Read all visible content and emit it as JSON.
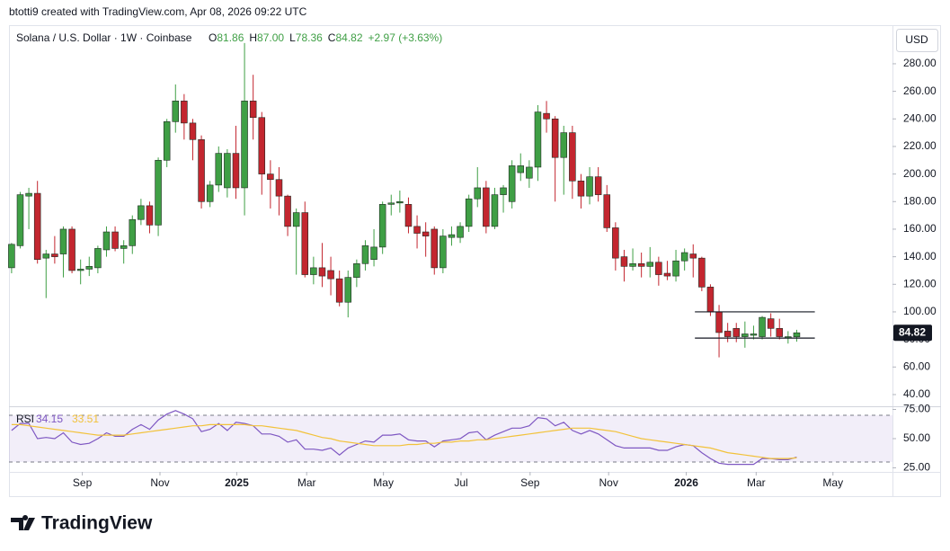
{
  "attribution": "btotti9 created with TradingView.com, Apr 08, 2026 09:22 UTC",
  "currency": "USD",
  "brand": "TradingView",
  "chart_data": [
    {
      "type": "candlestick",
      "title": "Solana / U.S. Dollar · 1W · Coinbase",
      "legend": [
        {
          "key": "O",
          "value": "81.86"
        },
        {
          "key": "H",
          "value": "87.00"
        },
        {
          "key": "L",
          "value": "78.36"
        },
        {
          "key": "C",
          "value": "84.82"
        }
      ],
      "change": "+2.97 (+3.63%)",
      "x": [
        0,
        1,
        2,
        3,
        4,
        5,
        6,
        7,
        8,
        9,
        10,
        11,
        12,
        13,
        14,
        15,
        16,
        17,
        18,
        19,
        20,
        21,
        22,
        23,
        24,
        25,
        26,
        27,
        28,
        29,
        30,
        31,
        32,
        33,
        34,
        35,
        36,
        37,
        38,
        39,
        40,
        41,
        42,
        43,
        44,
        45,
        46,
        47,
        48,
        49,
        50,
        51,
        52,
        53,
        54,
        55,
        56,
        57,
        58,
        59,
        60,
        61,
        62,
        63,
        64,
        65,
        66,
        67,
        68,
        69,
        70,
        71,
        72,
        73,
        74,
        75,
        76,
        77,
        78,
        79,
        80,
        81,
        82,
        83,
        84,
        85,
        86,
        87,
        88,
        89,
        90,
        91
      ],
      "open": [
        132,
        148,
        184,
        186,
        139,
        142,
        142,
        160,
        130,
        131,
        132,
        145,
        158,
        146,
        148,
        167,
        177,
        163,
        210,
        238,
        253,
        237,
        225,
        180,
        192,
        190,
        215,
        190,
        253,
        241,
        200,
        196,
        184,
        162,
        172,
        127,
        132,
        130,
        124,
        107,
        125,
        135,
        138,
        147,
        178,
        179,
        178,
        162,
        158,
        160,
        132,
        154,
        154,
        162,
        182,
        190,
        162,
        185,
        180,
        201,
        197,
        205,
        244,
        240,
        212,
        230,
        195,
        184,
        198,
        185,
        161,
        140,
        133,
        135,
        133,
        136,
        128,
        126,
        137,
        142,
        139,
        118,
        100,
        86,
        88,
        82,
        83,
        82,
        95,
        88,
        81,
        81.86
      ],
      "high": [
        150,
        187,
        190,
        195,
        145,
        155,
        162,
        162,
        138,
        140,
        148,
        162,
        162,
        152,
        170,
        182,
        180,
        212,
        240,
        265,
        258,
        240,
        228,
        195,
        220,
        218,
        235,
        295,
        272,
        245,
        210,
        205,
        185,
        175,
        180,
        140,
        150,
        140,
        130,
        130,
        138,
        152,
        160,
        180,
        185,
        188,
        183,
        170,
        165,
        162,
        160,
        162,
        165,
        185,
        205,
        195,
        190,
        192,
        210,
        215,
        210,
        250,
        253,
        242,
        235,
        235,
        200,
        205,
        205,
        192,
        165,
        145,
        146,
        143,
        147,
        140,
        137,
        145,
        146,
        149,
        140,
        120,
        105,
        92,
        92,
        93,
        90,
        97,
        99,
        95,
        86,
        87
      ],
      "low": [
        128,
        146,
        160,
        135,
        110,
        135,
        125,
        128,
        120,
        126,
        128,
        140,
        144,
        135,
        142,
        163,
        157,
        155,
        205,
        230,
        225,
        210,
        175,
        176,
        187,
        183,
        182,
        170,
        225,
        185,
        175,
        170,
        155,
        127,
        125,
        120,
        118,
        112,
        104,
        96,
        118,
        130,
        133,
        142,
        170,
        172,
        157,
        146,
        140,
        127,
        128,
        148,
        150,
        158,
        176,
        157,
        160,
        172,
        175,
        195,
        190,
        195,
        230,
        180,
        185,
        182,
        175,
        178,
        180,
        158,
        130,
        122,
        130,
        125,
        125,
        119,
        123,
        122,
        130,
        125,
        115,
        97,
        67,
        78,
        78,
        74,
        80,
        80,
        82,
        80,
        77,
        78.36
      ],
      "close": [
        149,
        185,
        186,
        138,
        142,
        140,
        160,
        130,
        131,
        133,
        146,
        158,
        146,
        148,
        167,
        177,
        163,
        210,
        238,
        253,
        237,
        225,
        180,
        192,
        215,
        215,
        190,
        253,
        241,
        200,
        196,
        184,
        162,
        172,
        127,
        132,
        126,
        124,
        107,
        125,
        135,
        148,
        147,
        178,
        179,
        180,
        162,
        157,
        155,
        132,
        155,
        156,
        162,
        182,
        190,
        162,
        185,
        190,
        206,
        206,
        205,
        245,
        240,
        212,
        230,
        195,
        184,
        198,
        185,
        161,
        139,
        133,
        135,
        133,
        136,
        127,
        126,
        137,
        143,
        139,
        118,
        100,
        85,
        82,
        82,
        84,
        84,
        96,
        88,
        82,
        82,
        84.82
      ],
      "up_color": "#3f9f45",
      "down_color": "#c3262f",
      "xlim": [
        -0.3,
        102.1
      ],
      "xticks": [
        {
          "value": 8.2,
          "label": "Sep"
        },
        {
          "value": 17.2,
          "label": "Nov"
        },
        {
          "value": 26.1,
          "label": "2025"
        },
        {
          "value": 34.2,
          "label": "Mar"
        },
        {
          "value": 43.1,
          "label": "May"
        },
        {
          "value": 52.1,
          "label": "Jul"
        },
        {
          "value": 60.1,
          "label": "Sep"
        },
        {
          "value": 69.2,
          "label": "Nov"
        },
        {
          "value": 78.2,
          "label": "2026"
        },
        {
          "value": 86.3,
          "label": "Mar"
        },
        {
          "value": 95.2,
          "label": "May"
        }
      ],
      "ylim": [
        31.5,
        308
      ],
      "yticks": [
        {
          "value": 40,
          "label": "40.00"
        },
        {
          "value": 60,
          "label": "60.00"
        },
        {
          "value": 80,
          "label": "80.00"
        },
        {
          "value": 100,
          "label": "100.00"
        },
        {
          "value": 120,
          "label": "120.00"
        },
        {
          "value": 140,
          "label": "140.00"
        },
        {
          "value": 160,
          "label": "160.00"
        },
        {
          "value": 180,
          "label": "180.00"
        },
        {
          "value": 200,
          "label": "200.00"
        },
        {
          "value": 220,
          "label": "220.00"
        },
        {
          "value": 240,
          "label": "240.00"
        },
        {
          "value": 260,
          "label": "260.00"
        },
        {
          "value": 280,
          "label": "280.00"
        }
      ],
      "lines": [
        {
          "value": 100,
          "x": [
            79.2,
            93.1
          ]
        },
        {
          "value": 81,
          "x": [
            79.2,
            93.1
          ]
        }
      ],
      "grid": false
    },
    {
      "type": "line",
      "title": "RSI",
      "x": [
        0,
        1,
        2,
        3,
        4,
        5,
        6,
        7,
        8,
        9,
        10,
        11,
        12,
        13,
        14,
        15,
        16,
        17,
        18,
        19,
        20,
        21,
        22,
        23,
        24,
        25,
        26,
        27,
        28,
        29,
        30,
        31,
        32,
        33,
        34,
        35,
        36,
        37,
        38,
        39,
        40,
        41,
        42,
        43,
        44,
        45,
        46,
        47,
        48,
        49,
        50,
        51,
        52,
        53,
        54,
        55,
        56,
        57,
        58,
        59,
        60,
        61,
        62,
        63,
        64,
        65,
        66,
        67,
        68,
        69,
        70,
        71,
        72,
        73,
        74,
        75,
        76,
        77,
        78,
        79,
        80,
        81,
        82,
        83,
        84,
        85,
        86,
        87,
        88,
        89,
        90,
        91
      ],
      "series": [
        {
          "color": "#7e57c2",
          "values": [
            57,
            63,
            63,
            50,
            51,
            50,
            55,
            47,
            45,
            46,
            50,
            55,
            52,
            52,
            58,
            62,
            58,
            66,
            71,
            74,
            71,
            67,
            56,
            58,
            63,
            57,
            64,
            63,
            61,
            54,
            54,
            52,
            47,
            49,
            41,
            41,
            40,
            42,
            36,
            42,
            45,
            48,
            47,
            53,
            53,
            54,
            49,
            48,
            48,
            43,
            48,
            49,
            50,
            55,
            56,
            49,
            53,
            56,
            59,
            59,
            61,
            68,
            67,
            61,
            64,
            57,
            54,
            57,
            54,
            49,
            44,
            42,
            42,
            42,
            42,
            40,
            40,
            43,
            45,
            44,
            38,
            33,
            29,
            28,
            28,
            28,
            28,
            33,
            33,
            32,
            32,
            34.15
          ]
        },
        {
          "color": "#f2c23a",
          "values": [
            62,
            62,
            61,
            60,
            59,
            58,
            57,
            56,
            55,
            54,
            53,
            53,
            53,
            53,
            54,
            55,
            56,
            57,
            58,
            59,
            60,
            61,
            61,
            62,
            62,
            62,
            62,
            62,
            61,
            61,
            60,
            59,
            58,
            57,
            55,
            53,
            51,
            50,
            48,
            47,
            46,
            45,
            44,
            44,
            44,
            44,
            45,
            45,
            46,
            46,
            47,
            47,
            48,
            48,
            49,
            49,
            50,
            51,
            52,
            53,
            54,
            55,
            56,
            57,
            58,
            59,
            59,
            59,
            58,
            57,
            56,
            54,
            52,
            50,
            49,
            48,
            47,
            46,
            45,
            44,
            43,
            42,
            40,
            38,
            37,
            36,
            35,
            34,
            33,
            33,
            33,
            33.51
          ]
        }
      ],
      "bands": [
        30,
        70
      ],
      "xlim": [
        -0.3,
        102.1
      ],
      "ylim": [
        21.5,
        77.7
      ],
      "yticks": [
        {
          "value": 25,
          "label": "25.00"
        },
        {
          "value": 50,
          "label": "50.00"
        },
        {
          "value": 75,
          "label": "75.00"
        }
      ]
    }
  ]
}
